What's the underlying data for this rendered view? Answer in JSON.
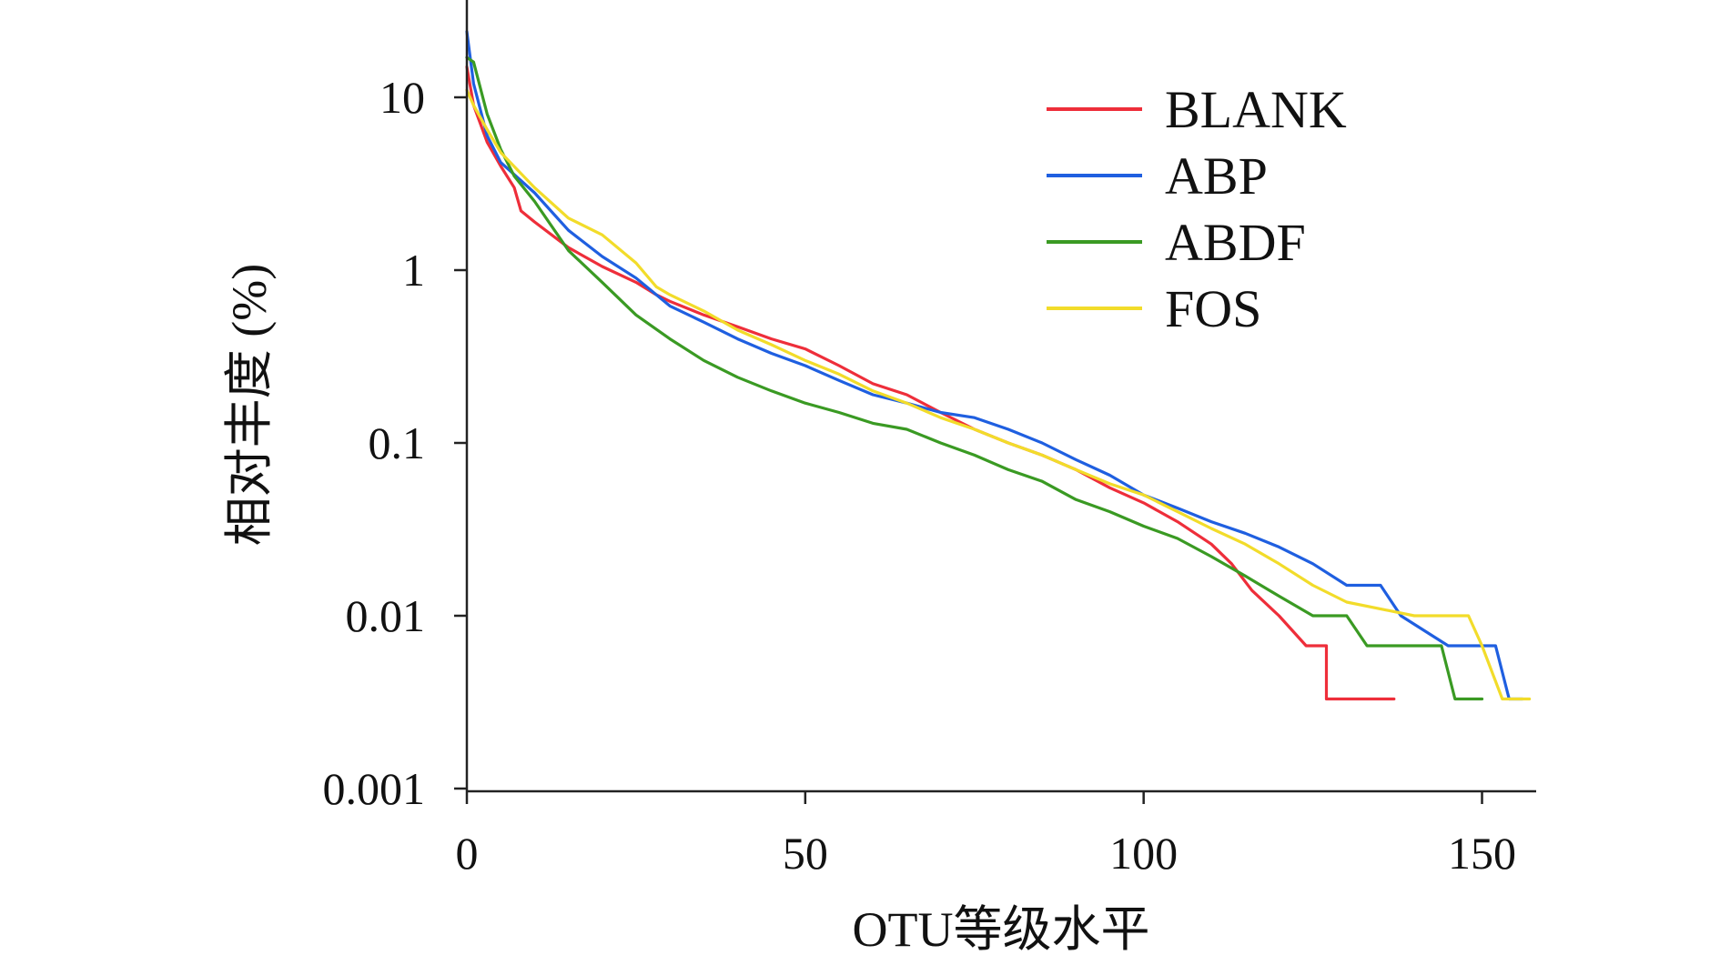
{
  "chart_data": {
    "type": "line",
    "title": "",
    "xlabel": "OTU等级水平",
    "ylabel": "相对丰度 (%)",
    "x_scale": "linear",
    "y_scale": "log",
    "xlim": [
      0,
      158
    ],
    "ylim": [
      0.001,
      40
    ],
    "x_ticks": [
      0,
      50,
      100,
      150
    ],
    "x_tick_labels": [
      "0",
      "50",
      "100",
      "150"
    ],
    "y_ticks": [
      10,
      1,
      0.1,
      0.01,
      0.001
    ],
    "y_tick_labels": [
      "10",
      "1",
      "0.1",
      "0.01",
      "0.001"
    ],
    "grid": false,
    "legend_position": "top-right",
    "series": [
      {
        "name": "BLANK",
        "color": "#ee2e3a",
        "points": [
          [
            0,
            15
          ],
          [
            1,
            9
          ],
          [
            3,
            5.5
          ],
          [
            5,
            4
          ],
          [
            7,
            3
          ],
          [
            8,
            2.2
          ],
          [
            10,
            1.9
          ],
          [
            15,
            1.35
          ],
          [
            20,
            1.05
          ],
          [
            25,
            0.85
          ],
          [
            28,
            0.72
          ],
          [
            30,
            0.66
          ],
          [
            35,
            0.55
          ],
          [
            40,
            0.47
          ],
          [
            45,
            0.4
          ],
          [
            50,
            0.35
          ],
          [
            55,
            0.28
          ],
          [
            60,
            0.22
          ],
          [
            65,
            0.19
          ],
          [
            70,
            0.15
          ],
          [
            75,
            0.12
          ],
          [
            80,
            0.1
          ],
          [
            85,
            0.085
          ],
          [
            90,
            0.07
          ],
          [
            95,
            0.055
          ],
          [
            100,
            0.045
          ],
          [
            105,
            0.035
          ],
          [
            110,
            0.026
          ],
          [
            113,
            0.02
          ],
          [
            116,
            0.014
          ],
          [
            120,
            0.01
          ],
          [
            124,
            0.0067
          ],
          [
            127,
            0.0067
          ],
          [
            127,
            0.0033
          ],
          [
            137,
            0.0033
          ]
        ]
      },
      {
        "name": "ABP",
        "color": "#1f5fe0",
        "points": [
          [
            0,
            24
          ],
          [
            1,
            12
          ],
          [
            3,
            6
          ],
          [
            5,
            4.2
          ],
          [
            10,
            2.8
          ],
          [
            15,
            1.7
          ],
          [
            20,
            1.2
          ],
          [
            25,
            0.9
          ],
          [
            30,
            0.62
          ],
          [
            35,
            0.5
          ],
          [
            40,
            0.4
          ],
          [
            45,
            0.33
          ],
          [
            50,
            0.28
          ],
          [
            55,
            0.23
          ],
          [
            60,
            0.19
          ],
          [
            65,
            0.17
          ],
          [
            70,
            0.15
          ],
          [
            75,
            0.14
          ],
          [
            80,
            0.12
          ],
          [
            85,
            0.1
          ],
          [
            90,
            0.08
          ],
          [
            95,
            0.065
          ],
          [
            100,
            0.05
          ],
          [
            105,
            0.042
          ],
          [
            110,
            0.035
          ],
          [
            115,
            0.03
          ],
          [
            120,
            0.025
          ],
          [
            125,
            0.02
          ],
          [
            130,
            0.015
          ],
          [
            135,
            0.015
          ],
          [
            138,
            0.01
          ],
          [
            145,
            0.0067
          ],
          [
            150,
            0.0067
          ],
          [
            152,
            0.0067
          ],
          [
            154,
            0.0033
          ],
          [
            156,
            0.0033
          ]
        ]
      },
      {
        "name": "ABDF",
        "color": "#3a9a23",
        "points": [
          [
            0,
            17
          ],
          [
            1,
            16
          ],
          [
            3,
            8
          ],
          [
            5,
            5
          ],
          [
            7,
            3.5
          ],
          [
            10,
            2.5
          ],
          [
            15,
            1.3
          ],
          [
            20,
            0.85
          ],
          [
            25,
            0.55
          ],
          [
            30,
            0.4
          ],
          [
            35,
            0.3
          ],
          [
            40,
            0.24
          ],
          [
            45,
            0.2
          ],
          [
            50,
            0.17
          ],
          [
            55,
            0.15
          ],
          [
            60,
            0.13
          ],
          [
            65,
            0.12
          ],
          [
            70,
            0.1
          ],
          [
            75,
            0.085
          ],
          [
            80,
            0.07
          ],
          [
            85,
            0.06
          ],
          [
            90,
            0.047
          ],
          [
            95,
            0.04
          ],
          [
            100,
            0.033
          ],
          [
            105,
            0.028
          ],
          [
            110,
            0.022
          ],
          [
            115,
            0.017
          ],
          [
            120,
            0.013
          ],
          [
            125,
            0.01
          ],
          [
            130,
            0.01
          ],
          [
            133,
            0.0067
          ],
          [
            140,
            0.0067
          ],
          [
            144,
            0.0067
          ],
          [
            146,
            0.0033
          ],
          [
            150,
            0.0033
          ]
        ]
      },
      {
        "name": "FOS",
        "color": "#f2dc2a",
        "points": [
          [
            0,
            11
          ],
          [
            1,
            9
          ],
          [
            3,
            6.5
          ],
          [
            5,
            4.8
          ],
          [
            10,
            3
          ],
          [
            15,
            2
          ],
          [
            20,
            1.6
          ],
          [
            25,
            1.1
          ],
          [
            28,
            0.8
          ],
          [
            30,
            0.72
          ],
          [
            35,
            0.58
          ],
          [
            40,
            0.45
          ],
          [
            45,
            0.37
          ],
          [
            50,
            0.3
          ],
          [
            55,
            0.25
          ],
          [
            60,
            0.2
          ],
          [
            65,
            0.17
          ],
          [
            70,
            0.14
          ],
          [
            75,
            0.12
          ],
          [
            80,
            0.1
          ],
          [
            85,
            0.085
          ],
          [
            90,
            0.07
          ],
          [
            95,
            0.058
          ],
          [
            100,
            0.05
          ],
          [
            105,
            0.04
          ],
          [
            110,
            0.032
          ],
          [
            115,
            0.026
          ],
          [
            120,
            0.02
          ],
          [
            125,
            0.015
          ],
          [
            130,
            0.012
          ],
          [
            140,
            0.01
          ],
          [
            148,
            0.01
          ],
          [
            150,
            0.0067
          ],
          [
            153,
            0.0033
          ],
          [
            157,
            0.0033
          ]
        ]
      }
    ]
  }
}
